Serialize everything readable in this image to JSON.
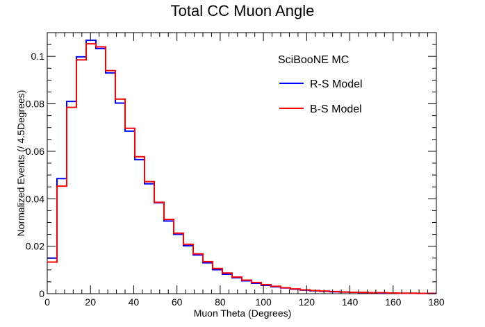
{
  "chart_data": {
    "type": "line",
    "title": "Total CC Muon Angle",
    "xlabel": "Muon Theta (Degrees)",
    "ylabel": "Normalized Events (/ 4.5Degrees)",
    "xlim": [
      0,
      180
    ],
    "ylim": [
      0,
      0.11
    ],
    "bin_width": 4.5,
    "x_ticks": [
      0,
      20,
      40,
      60,
      80,
      100,
      120,
      140,
      160,
      180
    ],
    "x_tick_labels": [
      "0",
      "20",
      "40",
      "60",
      "80",
      "100",
      "120",
      "140",
      "160",
      "180"
    ],
    "y_ticks": [
      0,
      0.02,
      0.04,
      0.06,
      0.08,
      0.1
    ],
    "y_tick_labels": [
      "0",
      "0.02",
      "0.04",
      "0.06",
      "0.08",
      "0.1"
    ],
    "grid": false,
    "legend": {
      "placement": "top-right",
      "header": "SciBooNE MC"
    },
    "series": [
      {
        "name": "R-S Model",
        "color": "#0000ff",
        "values": [
          0.015,
          0.0485,
          0.081,
          0.0998,
          0.1068,
          0.1033,
          0.093,
          0.0803,
          0.0685,
          0.0565,
          0.0463,
          0.0383,
          0.0306,
          0.025,
          0.0202,
          0.0163,
          0.013,
          0.0101,
          0.0082,
          0.0067,
          0.0054,
          0.0044,
          0.0035,
          0.0029,
          0.0024,
          0.0019,
          0.0015,
          0.0012,
          0.001,
          0.0008,
          0.0007,
          0.0006,
          0.0005,
          0.0004,
          0.0003,
          0.0003,
          0.0002,
          0.0002,
          0.0001,
          0.0001
        ]
      },
      {
        "name": "B-S Model",
        "color": "#ff0000",
        "values": [
          0.0133,
          0.0453,
          0.0785,
          0.0985,
          0.1053,
          0.104,
          0.094,
          0.082,
          0.0697,
          0.0577,
          0.0472,
          0.0385,
          0.0313,
          0.0255,
          0.0208,
          0.0168,
          0.0135,
          0.0106,
          0.0087,
          0.007,
          0.0057,
          0.0047,
          0.0038,
          0.0031,
          0.0025,
          0.002,
          0.0016,
          0.0013,
          0.0011,
          0.0009,
          0.0007,
          0.0006,
          0.0005,
          0.0004,
          0.0004,
          0.0003,
          0.0002,
          0.0002,
          0.0001,
          0.0001
        ]
      }
    ]
  }
}
